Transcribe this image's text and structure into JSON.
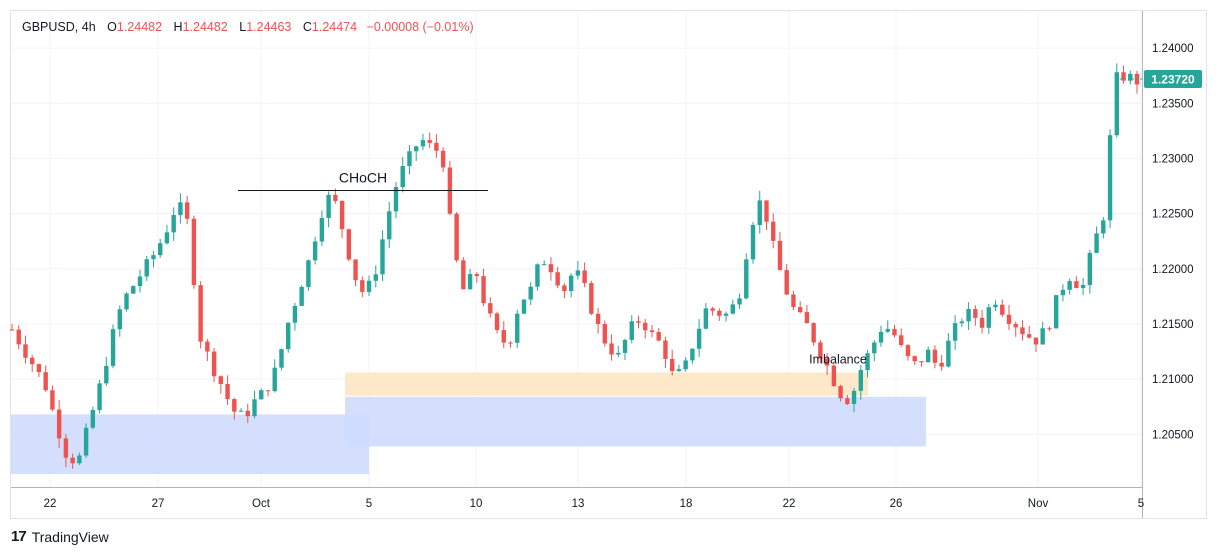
{
  "header": {
    "symbol": "GBPUSD",
    "interval": "4h",
    "open_label": "O",
    "open": "1.24482",
    "high_label": "H",
    "high": "1.24482",
    "low_label": "L",
    "low": "1.24463",
    "close_label": "C",
    "close": "1.24474",
    "change": "−0.00008 (−0.01%)"
  },
  "brand": {
    "name": "TradingView",
    "logo_text": "17"
  },
  "colors": {
    "up": "#26a69a",
    "down": "#ef5350",
    "grid": "#f0f3fa",
    "zone_blue": "#cfdcfe",
    "zone_orange": "#fde9c9",
    "price_badge": "#26a69a"
  },
  "chart_data": {
    "type": "candlestick",
    "ylim": [
      1.2005,
      1.242
    ],
    "y_ticks": [
      "1.24000",
      "1.23500",
      "1.23000",
      "1.22500",
      "1.22000",
      "1.21500",
      "1.21000",
      "1.20500"
    ],
    "x_ticks": [
      "22",
      "27",
      "Oct",
      "5",
      "10",
      "13",
      "18",
      "22",
      "26",
      "Nov",
      "5"
    ],
    "current_price": "1.23720",
    "annotations": [
      {
        "text": "CHoCH",
        "type": "horizontal-line",
        "price": 1.2271
      },
      {
        "text": "Imbalance",
        "type": "zone",
        "price_top": 1.2106,
        "price_bottom": 1.2085
      }
    ],
    "zones": [
      {
        "name": "demand-zone-left",
        "price_top": 1.2068,
        "price_bottom": 1.2014
      },
      {
        "name": "demand-zone-wide",
        "price_top": 1.2084,
        "price_bottom": 1.2039
      }
    ],
    "waypoints": [
      1.2145,
      1.2128,
      1.2112,
      1.2095,
      1.206,
      1.203,
      1.2025,
      1.206,
      1.2095,
      1.2135,
      1.217,
      1.2185,
      1.22,
      1.2215,
      1.2235,
      1.226,
      1.224,
      1.214,
      1.2115,
      1.2095,
      1.2072,
      1.2065,
      1.208,
      1.209,
      1.211,
      1.215,
      1.218,
      1.221,
      1.225,
      1.227,
      1.2235,
      1.2195,
      1.2175,
      1.22,
      1.2245,
      1.2282,
      1.23,
      1.2318,
      1.231,
      1.2305,
      1.2218,
      1.2178,
      1.22,
      1.2163,
      1.214,
      1.213,
      1.217,
      1.218,
      1.221,
      1.22,
      1.218,
      1.22,
      1.218,
      1.215,
      1.213,
      1.212,
      1.2145,
      1.2155,
      1.214,
      1.213,
      1.21,
      1.211,
      1.214,
      1.2165,
      1.216,
      1.2158,
      1.218,
      1.224,
      1.2265,
      1.222,
      1.2185,
      1.216,
      1.215,
      1.213,
      1.211,
      1.2088,
      1.208,
      1.211,
      1.213,
      1.215,
      1.214,
      1.212,
      1.2112,
      1.2125,
      1.211,
      1.2135,
      1.2155,
      1.216,
      1.215,
      1.2175,
      1.216,
      1.215,
      1.214,
      1.2135,
      1.215,
      1.218,
      1.2195,
      1.218,
      1.222,
      1.225,
      1.2372,
      1.2375,
      1.237
    ]
  }
}
